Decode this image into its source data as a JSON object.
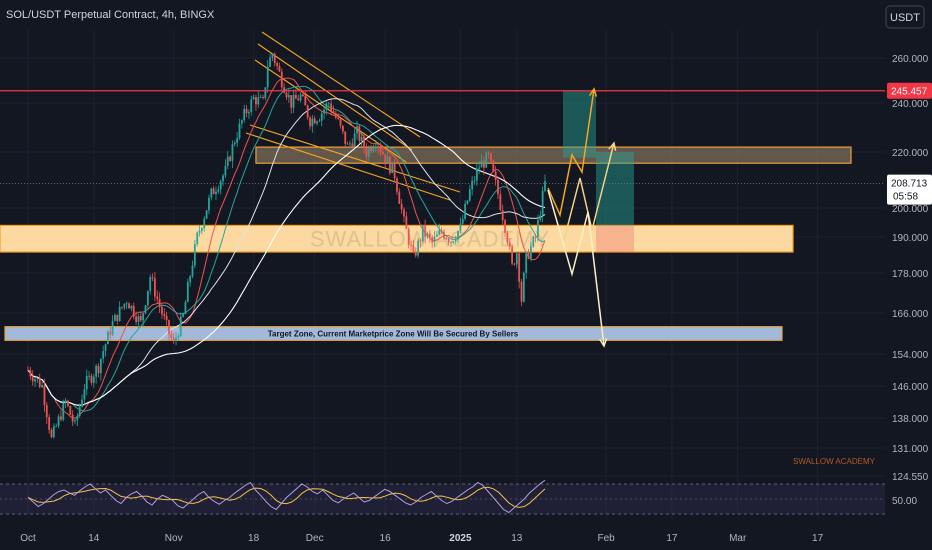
{
  "chart_data": {
    "type": "candlestick",
    "title": "SOL/USDT Perpetual Contract, 4h, BINGX",
    "currency": "USDT",
    "y_ticks": [
      "260.000",
      "240.000",
      "220.000",
      "200.000",
      "190.000",
      "178.000",
      "166.000",
      "154.000",
      "146.000",
      "138.000",
      "131.000",
      "124.550"
    ],
    "x_ticks": [
      "Oct",
      "14",
      "Nov",
      "18",
      "Dec",
      "16",
      "2025",
      "13",
      "Feb",
      "17",
      "Mar",
      "17"
    ],
    "x_tick_days": [
      0,
      14,
      31,
      48,
      61,
      76,
      92,
      104,
      123,
      137,
      151,
      168
    ],
    "last_price": "208.713",
    "countdown": "05:58",
    "resistance_price": "245.457",
    "resistance_value": 245.457,
    "supply_zone": [
      216,
      222
    ],
    "demand_zone": [
      185,
      194
    ],
    "target_zone": [
      158,
      162
    ],
    "target_zone_label": "Target Zone, Current Marketprice Zone Will Be Secured By Sellers",
    "watermark": "SWALLOW ACADEMY",
    "brand": "SWALLOW ACADEMY",
    "price_path": [
      {
        "day": 0,
        "price": 150
      },
      {
        "day": 3,
        "price": 146
      },
      {
        "day": 5,
        "price": 133
      },
      {
        "day": 8,
        "price": 142
      },
      {
        "day": 10,
        "price": 136
      },
      {
        "day": 12,
        "price": 146
      },
      {
        "day": 15,
        "price": 151
      },
      {
        "day": 18,
        "price": 163
      },
      {
        "day": 21,
        "price": 170
      },
      {
        "day": 24,
        "price": 163
      },
      {
        "day": 26,
        "price": 177
      },
      {
        "day": 28,
        "price": 168
      },
      {
        "day": 30,
        "price": 160
      },
      {
        "day": 31,
        "price": 157
      },
      {
        "day": 33,
        "price": 165
      },
      {
        "day": 36,
        "price": 190
      },
      {
        "day": 39,
        "price": 205
      },
      {
        "day": 42,
        "price": 213
      },
      {
        "day": 44,
        "price": 225
      },
      {
        "day": 46,
        "price": 235
      },
      {
        "day": 48,
        "price": 242
      },
      {
        "day": 50,
        "price": 240
      },
      {
        "day": 51,
        "price": 257
      },
      {
        "day": 52,
        "price": 262
      },
      {
        "day": 54,
        "price": 250
      },
      {
        "day": 56,
        "price": 240
      },
      {
        "day": 58,
        "price": 243
      },
      {
        "day": 60,
        "price": 233
      },
      {
        "day": 62,
        "price": 235
      },
      {
        "day": 64,
        "price": 240
      },
      {
        "day": 66,
        "price": 232
      },
      {
        "day": 68,
        "price": 222
      },
      {
        "day": 70,
        "price": 228
      },
      {
        "day": 72,
        "price": 220
      },
      {
        "day": 74,
        "price": 225
      },
      {
        "day": 76,
        "price": 218
      },
      {
        "day": 78,
        "price": 212
      },
      {
        "day": 80,
        "price": 195
      },
      {
        "day": 82,
        "price": 183
      },
      {
        "day": 84,
        "price": 192
      },
      {
        "day": 86,
        "price": 188
      },
      {
        "day": 88,
        "price": 192
      },
      {
        "day": 90,
        "price": 189
      },
      {
        "day": 92,
        "price": 193
      },
      {
        "day": 94,
        "price": 206
      },
      {
        "day": 96,
        "price": 215
      },
      {
        "day": 98,
        "price": 218
      },
      {
        "day": 100,
        "price": 205
      },
      {
        "day": 102,
        "price": 190
      },
      {
        "day": 103,
        "price": 180
      },
      {
        "day": 104,
        "price": 185
      },
      {
        "day": 105,
        "price": 170
      },
      {
        "day": 106,
        "price": 183
      },
      {
        "day": 108,
        "price": 190
      },
      {
        "day": 110,
        "price": 208.7
      }
    ],
    "rsi_level": "50.00",
    "rsi_values": [
      52,
      46,
      40,
      44,
      50,
      56,
      60,
      62,
      58,
      55,
      61,
      66,
      70,
      64,
      58,
      62,
      55,
      48,
      44,
      52,
      57,
      60,
      54,
      46,
      42,
      50,
      55,
      52,
      48,
      41,
      38,
      44,
      50,
      56,
      60,
      52,
      47,
      43,
      48,
      52,
      58,
      63,
      68,
      72,
      62,
      55,
      47,
      40,
      36,
      44,
      52,
      58,
      64,
      70,
      66,
      60,
      57,
      62,
      55,
      48,
      45,
      50,
      54,
      58,
      52,
      46,
      48,
      53,
      58,
      63,
      60,
      55,
      50,
      45,
      42,
      46,
      52,
      56,
      60,
      54,
      48,
      44,
      47,
      52,
      57,
      62,
      66,
      72,
      68,
      60,
      52,
      44,
      36,
      32,
      38,
      44,
      50,
      58,
      64,
      70,
      75
    ]
  }
}
